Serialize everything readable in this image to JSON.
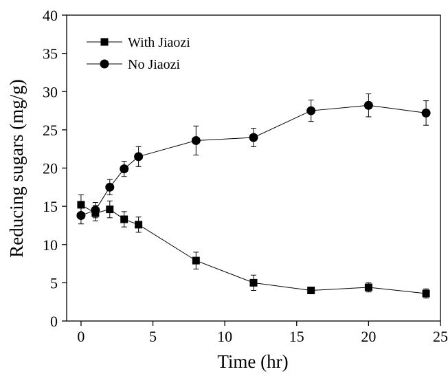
{
  "chart_data": {
    "type": "line",
    "title": "",
    "xlabel": "Time (hr)",
    "ylabel": "Reducing sugars (mg/g)",
    "xlim": [
      -1,
      25
    ],
    "ylim": [
      0,
      40
    ],
    "xticks": [
      0,
      5,
      10,
      15,
      20,
      25
    ],
    "yticks": [
      0,
      5,
      10,
      15,
      20,
      25,
      30,
      35,
      40
    ],
    "grid": false,
    "legend_position": "top-left",
    "series": [
      {
        "name": "With Jiaozi",
        "marker": "square",
        "color": "#000000",
        "x": [
          0,
          1,
          2,
          3,
          4,
          8,
          12,
          16,
          20,
          24
        ],
        "y": [
          15.2,
          14.1,
          14.6,
          13.3,
          12.6,
          7.9,
          5.0,
          4.0,
          4.4,
          3.6
        ],
        "error": [
          1.3,
          1.0,
          1.1,
          1.0,
          1.0,
          1.1,
          1.0,
          0.4,
          0.6,
          0.6
        ]
      },
      {
        "name": "No Jiaozi",
        "marker": "circle",
        "color": "#000000",
        "x": [
          0,
          1,
          2,
          3,
          4,
          8,
          12,
          16,
          20,
          24
        ],
        "y": [
          13.8,
          14.5,
          17.5,
          19.9,
          21.5,
          23.6,
          24.0,
          27.5,
          28.2,
          27.2
        ],
        "error": [
          1.1,
          1.0,
          1.0,
          1.0,
          1.3,
          1.9,
          1.2,
          1.4,
          1.5,
          1.6
        ]
      }
    ]
  }
}
